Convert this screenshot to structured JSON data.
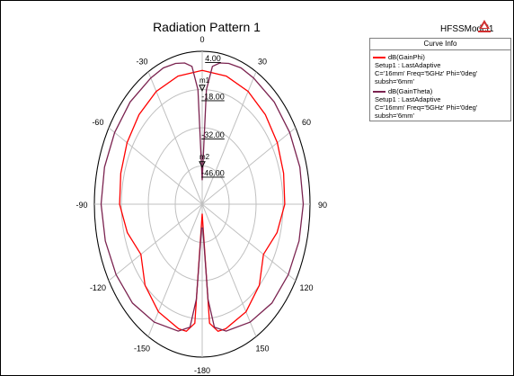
{
  "header": {
    "title": "Radiation Pattern 1",
    "model_name": "HFSSModel1"
  },
  "legend": {
    "title": "Curve Info",
    "entries": [
      {
        "name": "dB(GainPhi)",
        "line1": "Setup1 : LastAdaptive",
        "line2": "C='16mm' Freq='5GHz' Phi='0deg' subsh='6mm'",
        "color": "#ff0000"
      },
      {
        "name": "dB(GainTheta)",
        "line1": "Setup1 : LastAdaptive",
        "line2": "C='16mm' Freq='5GHz' Phi='0deg' subsh='6mm'",
        "color": "#7b2350"
      }
    ]
  },
  "colors": {
    "grid": "#c0c0c0",
    "phi": "#ff0000",
    "theta": "#7b2350",
    "logo": "#d03030"
  },
  "chart_data": {
    "type": "polar",
    "title": "Radiation Pattern 1",
    "angle_ticks": [
      "0",
      "30",
      "60",
      "90",
      "120",
      "150",
      "-180",
      "-150",
      "-120",
      "-90",
      "-60",
      "-30"
    ],
    "radial_ticks": [
      "4.00",
      "-18.00",
      "-32.00",
      "-46.00"
    ],
    "rlim": [
      -60,
      4
    ],
    "markers": [
      "m1",
      "m2"
    ],
    "series": [
      {
        "name": "dB(GainPhi)",
        "color": "#ff0000",
        "angles": [
          0,
          15,
          30,
          45,
          60,
          75,
          90,
          105,
          120,
          135,
          150,
          165,
          170,
          175,
          180,
          185,
          190,
          195,
          210,
          225,
          240,
          255,
          270,
          285,
          300,
          315,
          330,
          345,
          360
        ],
        "values": [
          -4,
          -4.5,
          -5.5,
          -7,
          -8.5,
          -10,
          -11,
          -14,
          -18,
          -12,
          -8,
          -6,
          -6,
          -10,
          -56,
          -10,
          -6,
          -6,
          -8,
          -12,
          -18,
          -14,
          -11,
          -10,
          -8.5,
          -7,
          -5.5,
          -4.5,
          -4
        ]
      },
      {
        "name": "dB(GainTheta)",
        "color": "#7b2350",
        "angles": [
          0,
          3,
          6,
          10,
          15,
          22,
          30,
          45,
          60,
          75,
          90,
          105,
          120,
          135,
          150,
          165,
          172,
          175,
          178,
          180,
          182,
          185,
          188,
          195,
          210,
          225,
          240,
          255,
          270,
          285,
          300,
          315,
          330,
          338,
          345,
          350,
          354,
          357,
          360
        ],
        "values": [
          -50,
          -12,
          -2,
          0,
          1,
          1.5,
          1,
          0.5,
          0,
          0,
          0,
          -0.5,
          -1,
          -1.5,
          -3,
          -5,
          -8,
          -20,
          -50,
          -50,
          -50,
          -20,
          -8,
          -5,
          -3,
          -1.5,
          -1,
          -0.5,
          0,
          0,
          0,
          0.5,
          1,
          1.5,
          1,
          0,
          -2,
          -12,
          -50
        ]
      }
    ]
  }
}
